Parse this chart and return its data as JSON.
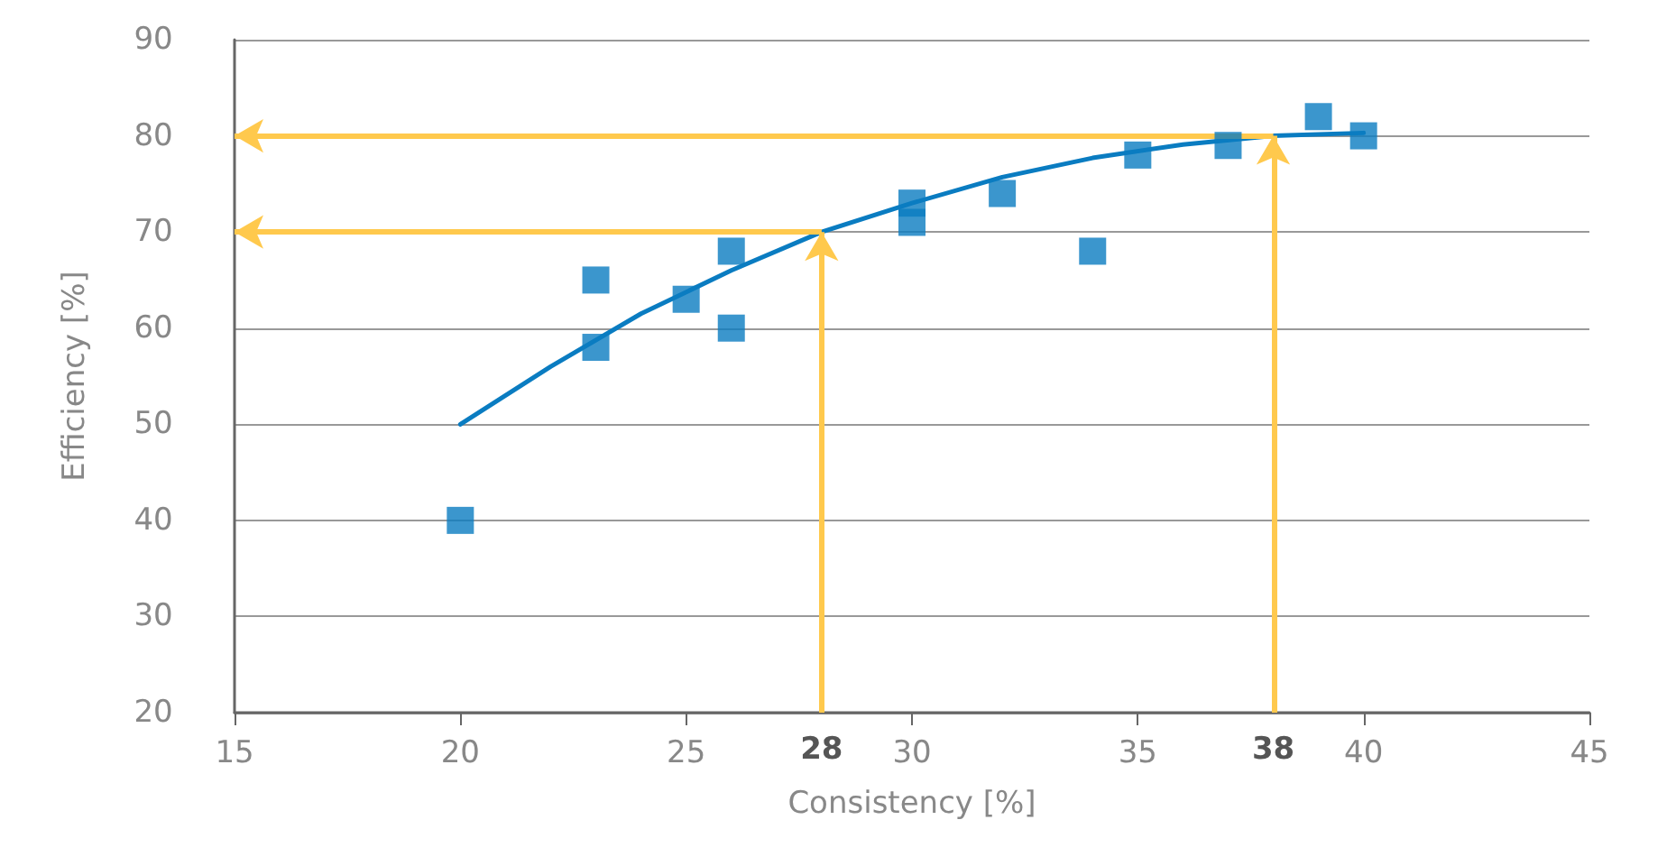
{
  "chart_data": {
    "type": "scatter",
    "xlabel": "Consistency [%]",
    "ylabel": "Efficiency [%]",
    "xlim": [
      15,
      45
    ],
    "xticks": [
      15,
      20,
      25,
      30,
      35,
      40,
      45
    ],
    "ylim": [
      20,
      90
    ],
    "yticks": [
      20,
      30,
      40,
      50,
      60,
      70,
      80,
      90
    ],
    "grid": "y",
    "marker": "square",
    "series": [
      {
        "color": "#0a7cc1",
        "x": [
          20,
          23,
          23,
          25,
          26,
          26,
          30,
          30,
          32,
          34,
          35,
          37,
          39,
          40
        ],
        "values": [
          40,
          65,
          58,
          63,
          68,
          60,
          73,
          71,
          74,
          68,
          78,
          79,
          82,
          80
        ]
      },
      {
        "type": "line",
        "color": "#0a7cc1",
        "marker": "none",
        "x": [
          20,
          22,
          24,
          26,
          28,
          30,
          32,
          34,
          36,
          38,
          40
        ],
        "values": [
          50,
          56,
          61.5,
          66,
          70,
          73,
          75.7,
          77.7,
          79.1,
          80,
          80.3
        ]
      }
    ],
    "annotations": [
      {
        "text": "28",
        "x": 28,
        "y": 70
      },
      {
        "text": "38",
        "x": 38,
        "y": 80
      }
    ]
  }
}
